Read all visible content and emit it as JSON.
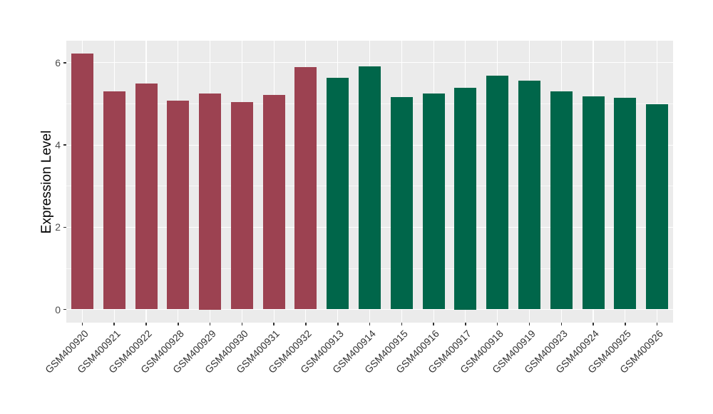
{
  "chart_data": {
    "type": "bar",
    "title": "",
    "xlabel": "",
    "ylabel": "Expression Level",
    "categories": [
      "GSM400920",
      "GSM400921",
      "GSM400922",
      "GSM400928",
      "GSM400929",
      "GSM400930",
      "GSM400931",
      "GSM400932",
      "GSM400913",
      "GSM400914",
      "GSM400915",
      "GSM400916",
      "GSM400917",
      "GSM400918",
      "GSM400919",
      "GSM400923",
      "GSM400924",
      "GSM400925",
      "GSM400926"
    ],
    "values": [
      6.22,
      5.3,
      5.5,
      5.08,
      5.26,
      5.05,
      5.21,
      5.9,
      5.64,
      5.91,
      5.16,
      5.25,
      5.4,
      5.69,
      5.57,
      5.3,
      5.19,
      5.15,
      4.99
    ],
    "bar_groups": [
      "A",
      "A",
      "A",
      "A",
      "A",
      "A",
      "A",
      "A",
      "B",
      "B",
      "B",
      "B",
      "B",
      "B",
      "B",
      "B",
      "B",
      "B",
      "B"
    ],
    "group_colors": {
      "A": "#9c4251",
      "B": "#00664a"
    },
    "y_major_ticks": [
      0,
      2,
      4,
      6
    ],
    "y_minor_ticks": [
      1,
      3,
      5
    ],
    "ylim": [
      -0.33,
      6.53
    ],
    "grid": "on",
    "legend": "none",
    "style": {
      "panel_background": "#ebebeb",
      "grid_major_color": "#ffffff",
      "grid_minor_color": "rgba(255,255,255,0.65)",
      "tick_mark_color": "#333333",
      "tick_label_color": "#4d4d4d",
      "x_label_color": "#333333",
      "axis_title_color": "#000000"
    }
  }
}
